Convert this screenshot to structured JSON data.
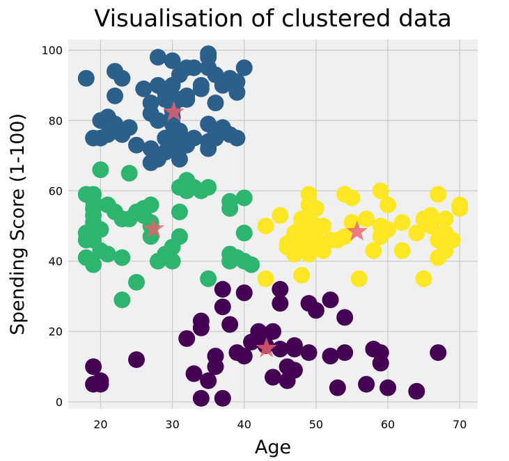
{
  "chart_data": {
    "type": "scatter",
    "title": "Visualisation of clustered data",
    "xlabel": "Age",
    "ylabel": "Spending Score (1-100)",
    "xlim": [
      15.5,
      72.5
    ],
    "ylim": [
      -2,
      103
    ],
    "xticks": [
      20,
      30,
      40,
      50,
      60,
      70
    ],
    "yticks": [
      0,
      20,
      40,
      60,
      80,
      100
    ],
    "xtick_labels": [
      "20",
      "30",
      "40",
      "50",
      "60",
      "70"
    ],
    "ytick_labels": [
      "0",
      "20",
      "40",
      "60",
      "80",
      "100"
    ],
    "grid": true,
    "background": "#f0f0f0",
    "grid_color": "#cbcbcb",
    "centroid_color": "#e8606f",
    "series": [
      {
        "color": "#2c5f8a",
        "points": [
          [
            18,
            92
          ],
          [
            22,
            94
          ],
          [
            23,
            92
          ],
          [
            22,
            87
          ],
          [
            21,
            81
          ],
          [
            20,
            80
          ],
          [
            20,
            75
          ],
          [
            21,
            76
          ],
          [
            22,
            79
          ],
          [
            23,
            76
          ],
          [
            24,
            78
          ],
          [
            25,
            73
          ],
          [
            26,
            89
          ],
          [
            28,
            98
          ],
          [
            28,
            90
          ],
          [
            27,
            85
          ],
          [
            27,
            82
          ],
          [
            28,
            80
          ],
          [
            29,
            86
          ],
          [
            29,
            88
          ],
          [
            30,
            97
          ],
          [
            30,
            90
          ],
          [
            30,
            83
          ],
          [
            30,
            81
          ],
          [
            30,
            79
          ],
          [
            30,
            76
          ],
          [
            30,
            73
          ],
          [
            29,
            71
          ],
          [
            28,
            69
          ],
          [
            27,
            72
          ],
          [
            29,
            75
          ],
          [
            31,
            77
          ],
          [
            31,
            74
          ],
          [
            31,
            72
          ],
          [
            31,
            69
          ],
          [
            31,
            93
          ],
          [
            32,
            95
          ],
          [
            32,
            87
          ],
          [
            32,
            86
          ],
          [
            31,
            86
          ],
          [
            33,
            95
          ],
          [
            34,
            89
          ],
          [
            35,
            98
          ],
          [
            35,
            99
          ],
          [
            35,
            95
          ],
          [
            34,
            90
          ],
          [
            35,
            79
          ],
          [
            36,
            93
          ],
          [
            36,
            85
          ],
          [
            36,
            75
          ],
          [
            35,
            74
          ],
          [
            35,
            72
          ],
          [
            37,
            90
          ],
          [
            38,
            92
          ],
          [
            39,
            91
          ],
          [
            40,
            95
          ],
          [
            39,
            88
          ],
          [
            38,
            76
          ],
          [
            39,
            75
          ],
          [
            19,
            75
          ],
          [
            22,
            77
          ],
          [
            27,
            68
          ],
          [
            32,
            73
          ],
          [
            33,
            75
          ],
          [
            36,
            76
          ],
          [
            37,
            78
          ]
        ]
      },
      {
        "color": "#2db46e",
        "points": [
          [
            18,
            59
          ],
          [
            19,
            59
          ],
          [
            19,
            57
          ],
          [
            19,
            55
          ],
          [
            19,
            53
          ],
          [
            19,
            51
          ],
          [
            19,
            49
          ],
          [
            18,
            48
          ],
          [
            18,
            46
          ],
          [
            19,
            46
          ],
          [
            20,
            49
          ],
          [
            20,
            66
          ],
          [
            20,
            43
          ],
          [
            18,
            41
          ],
          [
            19,
            39
          ],
          [
            21,
            42
          ],
          [
            21,
            56
          ],
          [
            22,
            54
          ],
          [
            23,
            52
          ],
          [
            23,
            41
          ],
          [
            23,
            29
          ],
          [
            24,
            52
          ],
          [
            24,
            65
          ],
          [
            25,
            54
          ],
          [
            25,
            34
          ],
          [
            26,
            55
          ],
          [
            26,
            53
          ],
          [
            27,
            56
          ],
          [
            27,
            51
          ],
          [
            27,
            50
          ],
          [
            27,
            47
          ],
          [
            28,
            40
          ],
          [
            29,
            42
          ],
          [
            30,
            40
          ],
          [
            30,
            44
          ],
          [
            31,
            54
          ],
          [
            31,
            47
          ],
          [
            31,
            61
          ],
          [
            32,
            63
          ],
          [
            32,
            60
          ],
          [
            33,
            61
          ],
          [
            34,
            60
          ],
          [
            35,
            61
          ],
          [
            35,
            35
          ],
          [
            38,
            55
          ],
          [
            38,
            42
          ],
          [
            38,
            40
          ],
          [
            39,
            41
          ],
          [
            40,
            58
          ],
          [
            40,
            48
          ],
          [
            40,
            40
          ],
          [
            41,
            39
          ],
          [
            38,
            57
          ]
        ]
      },
      {
        "color": "#fde725",
        "points": [
          [
            43,
            50
          ],
          [
            43,
            35
          ],
          [
            45,
            53
          ],
          [
            46,
            45
          ],
          [
            46,
            44
          ],
          [
            47,
            42
          ],
          [
            47,
            48
          ],
          [
            47,
            46
          ],
          [
            48,
            50
          ],
          [
            48,
            52
          ],
          [
            48,
            47
          ],
          [
            48,
            45
          ],
          [
            48,
            44
          ],
          [
            48,
            36
          ],
          [
            49,
            59
          ],
          [
            49,
            56
          ],
          [
            49,
            53
          ],
          [
            49,
            49
          ],
          [
            49,
            47
          ],
          [
            49,
            45
          ],
          [
            49,
            42
          ],
          [
            50,
            55
          ],
          [
            50,
            50
          ],
          [
            50,
            46
          ],
          [
            50,
            44
          ],
          [
            51,
            50
          ],
          [
            51,
            43
          ],
          [
            52,
            46
          ],
          [
            53,
            46
          ],
          [
            54,
            59
          ],
          [
            54,
            47
          ],
          [
            55,
            58
          ],
          [
            55,
            51
          ],
          [
            56,
            35
          ],
          [
            57,
            52
          ],
          [
            59,
            60
          ],
          [
            59,
            50
          ],
          [
            59,
            47
          ],
          [
            60,
            56
          ],
          [
            60,
            49
          ],
          [
            62,
            51
          ],
          [
            62,
            43
          ],
          [
            64,
            48
          ],
          [
            65,
            52
          ],
          [
            65,
            35
          ],
          [
            66,
            53
          ],
          [
            66,
            50
          ],
          [
            67,
            59
          ],
          [
            67,
            46
          ],
          [
            67,
            41
          ],
          [
            68,
            52
          ],
          [
            68,
            43
          ],
          [
            68,
            48
          ],
          [
            69,
            46
          ],
          [
            70,
            56
          ],
          [
            70,
            55
          ],
          [
            58,
            43
          ]
        ]
      },
      {
        "color": "#440154",
        "points": [
          [
            19,
            10
          ],
          [
            19,
            5
          ],
          [
            20,
            6
          ],
          [
            20,
            5
          ],
          [
            25,
            12
          ],
          [
            32,
            18
          ],
          [
            33,
            8
          ],
          [
            34,
            23
          ],
          [
            34,
            21
          ],
          [
            34,
            1
          ],
          [
            35,
            6
          ],
          [
            36,
            10
          ],
          [
            36,
            13
          ],
          [
            37,
            1
          ],
          [
            37,
            32
          ],
          [
            37,
            27
          ],
          [
            38,
            22
          ],
          [
            40,
            31
          ],
          [
            40,
            13
          ],
          [
            41,
            17
          ],
          [
            42,
            20
          ],
          [
            42,
            18
          ],
          [
            43,
            19
          ],
          [
            44,
            20
          ],
          [
            44,
            7
          ],
          [
            45,
            32
          ],
          [
            45,
            28
          ],
          [
            45,
            15
          ],
          [
            46,
            6
          ],
          [
            46,
            10
          ],
          [
            47,
            15
          ],
          [
            47,
            16
          ],
          [
            47,
            9
          ],
          [
            49,
            14
          ],
          [
            49,
            28
          ],
          [
            50,
            26
          ],
          [
            52,
            29
          ],
          [
            52,
            13
          ],
          [
            53,
            4
          ],
          [
            54,
            24
          ],
          [
            54,
            14
          ],
          [
            57,
            5
          ],
          [
            58,
            15
          ],
          [
            59,
            14
          ],
          [
            59,
            11
          ],
          [
            60,
            4
          ],
          [
            64,
            3
          ],
          [
            67,
            14
          ],
          [
            39,
            14
          ],
          [
            43,
            16
          ]
        ]
      }
    ],
    "centroids": [
      [
        30.2,
        82.4
      ],
      [
        27.4,
        49.2
      ],
      [
        55.7,
        48.4
      ],
      [
        43.1,
        15.2
      ]
    ]
  }
}
